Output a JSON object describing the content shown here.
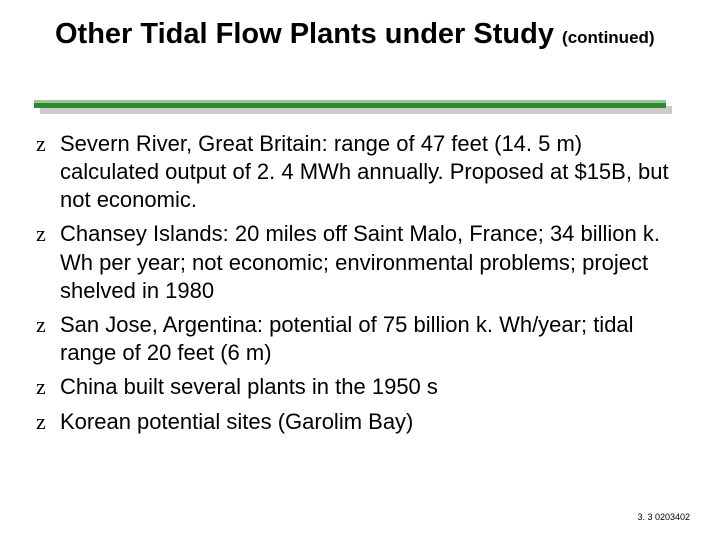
{
  "title_main": "Other Tidal Flow Plants under Study",
  "title_sub": "(continued)",
  "divider": {
    "main_color": "#2d8a2d",
    "shadow_color": "#cccccc"
  },
  "bullets": [
    "Severn River, Great Britain: range of 47 feet (14. 5 m) calculated output of 2. 4 MWh annually. Proposed at $15B, but not economic.",
    "Chansey Islands: 20 miles off Saint Malo, France; 34 billion k. Wh per year; not economic; environmental problems; project shelved in 1980",
    "San Jose, Argentina: potential of 75 billion k. Wh/year; tidal range of 20 feet (6 m)",
    "China built several plants in the 1950 s",
    "Korean potential sites (Garolim Bay)"
  ],
  "bullet_marker": "z",
  "footer": "3. 3 0203402",
  "typography": {
    "title_fontsize": 29,
    "title_weight": 900,
    "subtitle_fontsize": 17,
    "body_fontsize": 22,
    "footer_fontsize": 9,
    "text_color": "#000000",
    "background_color": "#ffffff"
  }
}
